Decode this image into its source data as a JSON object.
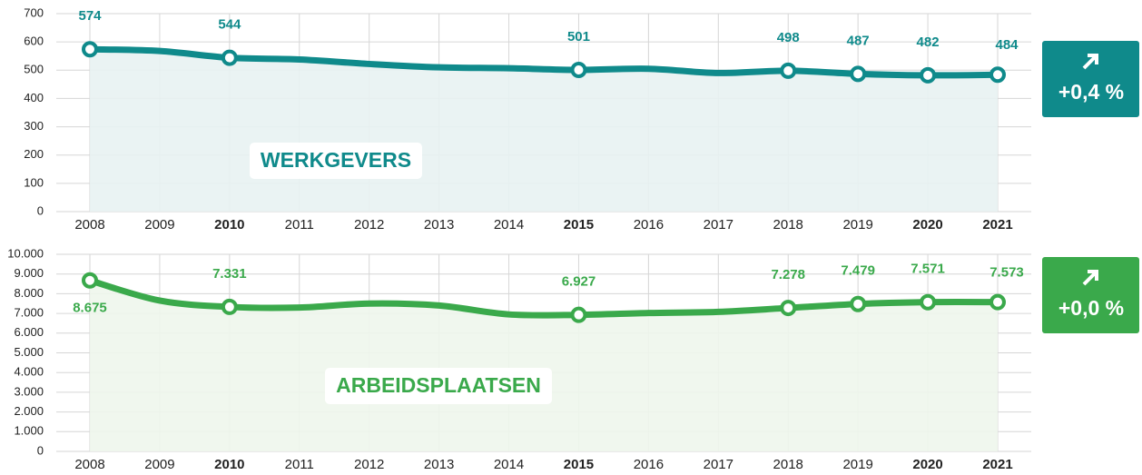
{
  "chart_data": [
    {
      "type": "line",
      "label": "WERKGEVERS",
      "color": "#0f8a8b",
      "area_color": "#e8f2f2",
      "x": [
        2008,
        2009,
        2010,
        2011,
        2012,
        2013,
        2014,
        2015,
        2016,
        2017,
        2018,
        2019,
        2020,
        2021
      ],
      "highlight_x": [
        2010,
        2015,
        2020,
        2021
      ],
      "values": [
        574,
        568,
        544,
        538,
        522,
        510,
        507,
        501,
        505,
        490,
        498,
        487,
        482,
        484
      ],
      "value_labels": [
        "574",
        null,
        "544",
        null,
        null,
        null,
        null,
        "501",
        null,
        null,
        "498",
        "487",
        "482",
        "484"
      ],
      "ylim": [
        0,
        700
      ],
      "yticks": [
        0,
        100,
        200,
        300,
        400,
        500,
        600,
        700
      ],
      "grid": true,
      "badge": "+0,4 %"
    },
    {
      "type": "line",
      "label": "ARBEIDSPLAATSEN",
      "color": "#3aa94b",
      "area_color": "#eef6ec",
      "x": [
        2008,
        2009,
        2010,
        2011,
        2012,
        2013,
        2014,
        2015,
        2016,
        2017,
        2018,
        2019,
        2020,
        2021
      ],
      "highlight_x": [
        2010,
        2015,
        2020,
        2021
      ],
      "values": [
        8675,
        7650,
        7331,
        7300,
        7500,
        7400,
        6950,
        6927,
        7020,
        7080,
        7278,
        7479,
        7571,
        7573
      ],
      "value_labels": [
        "8.675",
        null,
        "7.331",
        null,
        null,
        null,
        null,
        "6.927",
        null,
        null,
        "7.278",
        "7.479",
        "7.571",
        "7.573"
      ],
      "ylim": [
        0,
        10000
      ],
      "yticks": [
        0,
        {
          "value": 1000,
          "label": "1.000"
        },
        {
          "value": 2000,
          "label": "2.000"
        },
        {
          "value": 3000,
          "label": "3.000"
        },
        {
          "value": 4000,
          "label": "4.000"
        },
        {
          "value": 5000,
          "label": "5.000"
        },
        {
          "value": 6000,
          "label": "6.000"
        },
        {
          "value": 7000,
          "label": "7.000"
        },
        {
          "value": 8000,
          "label": "8.000"
        },
        {
          "value": 9000,
          "label": "9.000"
        },
        {
          "value": 10000,
          "label": "10.000"
        }
      ],
      "grid": true,
      "badge": "+0,0 %"
    }
  ]
}
